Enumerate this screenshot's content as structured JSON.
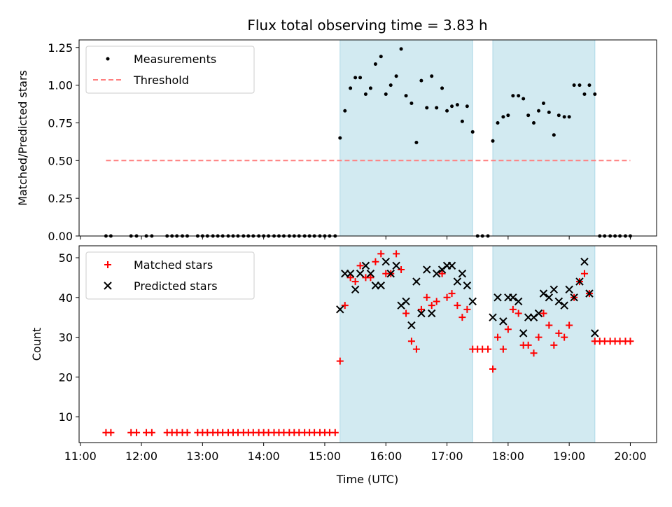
{
  "title": "Flux total observing time = 3.83 h",
  "xlabel": "Time (UTC)",
  "xticks": [
    {
      "v": 11,
      "label": "11:00"
    },
    {
      "v": 12,
      "label": "12:00"
    },
    {
      "v": 13,
      "label": "13:00"
    },
    {
      "v": 14,
      "label": "14:00"
    },
    {
      "v": 15,
      "label": "15:00"
    },
    {
      "v": 16,
      "label": "16:00"
    },
    {
      "v": 17,
      "label": "17:00"
    },
    {
      "v": 18,
      "label": "18:00"
    },
    {
      "v": 19,
      "label": "19:00"
    },
    {
      "v": 20,
      "label": "20:00"
    }
  ],
  "colors": {
    "measure": "#000000",
    "threshold": "#ff7f7f",
    "matched": "#ff0000",
    "predicted": "#000000",
    "shade": "#add8e6"
  },
  "chart_data": [
    {
      "type": "scatter",
      "ylabel": "Matched/Predicted stars",
      "xlim": [
        10.98,
        20.43
      ],
      "ylim": [
        0,
        1.3
      ],
      "yticks": [
        {
          "v": 0,
          "label": "0.00"
        },
        {
          "v": 0.25,
          "label": "0.25"
        },
        {
          "v": 0.5,
          "label": "0.50"
        },
        {
          "v": 0.75,
          "label": "0.75"
        },
        {
          "v": 1.0,
          "label": "1.00"
        },
        {
          "v": 1.25,
          "label": "1.25"
        }
      ],
      "shaded_intervals": [
        [
          15.25,
          17.42
        ],
        [
          17.75,
          19.42
        ]
      ],
      "legend": {
        "position": "top-left",
        "entries": [
          "Measurements",
          "Threshold"
        ]
      },
      "series": [
        {
          "name": "Measurements",
          "marker": "dot",
          "points": [
            [
              11.42,
              0
            ],
            [
              11.5,
              0
            ],
            [
              11.83,
              0
            ],
            [
              11.92,
              0
            ],
            [
              12.08,
              0
            ],
            [
              12.17,
              0
            ],
            [
              12.42,
              0
            ],
            [
              12.5,
              0
            ],
            [
              12.58,
              0
            ],
            [
              12.67,
              0
            ],
            [
              12.75,
              0
            ],
            [
              12.92,
              0
            ],
            [
              13.0,
              0
            ],
            [
              13.08,
              0
            ],
            [
              13.17,
              0
            ],
            [
              13.25,
              0
            ],
            [
              13.33,
              0
            ],
            [
              13.42,
              0
            ],
            [
              13.5,
              0
            ],
            [
              13.58,
              0
            ],
            [
              13.67,
              0
            ],
            [
              13.75,
              0
            ],
            [
              13.83,
              0
            ],
            [
              13.92,
              0
            ],
            [
              14.0,
              0
            ],
            [
              14.08,
              0
            ],
            [
              14.17,
              0
            ],
            [
              14.25,
              0
            ],
            [
              14.33,
              0
            ],
            [
              14.42,
              0
            ],
            [
              14.5,
              0
            ],
            [
              14.58,
              0
            ],
            [
              14.67,
              0
            ],
            [
              14.75,
              0
            ],
            [
              14.83,
              0
            ],
            [
              14.92,
              0
            ],
            [
              15.0,
              0
            ],
            [
              15.08,
              0
            ],
            [
              15.17,
              0
            ],
            [
              15.25,
              0.65
            ],
            [
              15.33,
              0.83
            ],
            [
              15.42,
              0.98
            ],
            [
              15.5,
              1.05
            ],
            [
              15.58,
              1.05
            ],
            [
              15.67,
              0.94
            ],
            [
              15.75,
              0.98
            ],
            [
              15.83,
              1.14
            ],
            [
              15.92,
              1.19
            ],
            [
              16.0,
              0.94
            ],
            [
              16.08,
              1.0
            ],
            [
              16.17,
              1.06
            ],
            [
              16.25,
              1.24
            ],
            [
              16.33,
              0.93
            ],
            [
              16.42,
              0.88
            ],
            [
              16.5,
              0.62
            ],
            [
              16.58,
              1.03
            ],
            [
              16.67,
              0.85
            ],
            [
              16.75,
              1.06
            ],
            [
              16.83,
              0.85
            ],
            [
              16.92,
              0.98
            ],
            [
              17.0,
              0.83
            ],
            [
              17.08,
              0.86
            ],
            [
              17.17,
              0.87
            ],
            [
              17.25,
              0.76
            ],
            [
              17.33,
              0.86
            ],
            [
              17.42,
              0.69
            ],
            [
              17.5,
              0
            ],
            [
              17.58,
              0
            ],
            [
              17.67,
              0
            ],
            [
              17.75,
              0.63
            ],
            [
              17.83,
              0.75
            ],
            [
              17.92,
              0.79
            ],
            [
              18.0,
              0.8
            ],
            [
              18.08,
              0.93
            ],
            [
              18.17,
              0.93
            ],
            [
              18.25,
              0.91
            ],
            [
              18.33,
              0.8
            ],
            [
              18.42,
              0.75
            ],
            [
              18.5,
              0.83
            ],
            [
              18.58,
              0.88
            ],
            [
              18.67,
              0.82
            ],
            [
              18.75,
              0.67
            ],
            [
              18.83,
              0.8
            ],
            [
              18.92,
              0.79
            ],
            [
              19.0,
              0.79
            ],
            [
              19.08,
              1.0
            ],
            [
              19.17,
              1.0
            ],
            [
              19.25,
              0.94
            ],
            [
              19.33,
              1.0
            ],
            [
              19.42,
              0.94
            ],
            [
              19.5,
              0
            ],
            [
              19.58,
              0
            ],
            [
              19.67,
              0
            ],
            [
              19.75,
              0
            ],
            [
              19.83,
              0
            ],
            [
              19.92,
              0
            ],
            [
              20.0,
              0
            ]
          ]
        },
        {
          "name": "Threshold",
          "style": "dashed",
          "points": [
            [
              11.42,
              0.5
            ],
            [
              20.0,
              0.5
            ]
          ]
        }
      ]
    },
    {
      "type": "scatter",
      "ylabel": "Count",
      "xlim": [
        10.98,
        20.43
      ],
      "ylim": [
        3.5,
        53
      ],
      "yticks": [
        {
          "v": 10,
          "label": "10"
        },
        {
          "v": 20,
          "label": "20"
        },
        {
          "v": 30,
          "label": "30"
        },
        {
          "v": 40,
          "label": "40"
        },
        {
          "v": 50,
          "label": "50"
        }
      ],
      "shaded_intervals": [
        [
          15.25,
          17.42
        ],
        [
          17.75,
          19.42
        ]
      ],
      "legend": {
        "position": "top-left",
        "entries": [
          "Matched stars",
          "Predicted stars"
        ]
      },
      "series": [
        {
          "name": "Matched stars",
          "marker": "plus",
          "points": [
            [
              11.42,
              6
            ],
            [
              11.5,
              6
            ],
            [
              11.83,
              6
            ],
            [
              11.92,
              6
            ],
            [
              12.08,
              6
            ],
            [
              12.17,
              6
            ],
            [
              12.42,
              6
            ],
            [
              12.5,
              6
            ],
            [
              12.58,
              6
            ],
            [
              12.67,
              6
            ],
            [
              12.75,
              6
            ],
            [
              12.92,
              6
            ],
            [
              13.0,
              6
            ],
            [
              13.08,
              6
            ],
            [
              13.17,
              6
            ],
            [
              13.25,
              6
            ],
            [
              13.33,
              6
            ],
            [
              13.42,
              6
            ],
            [
              13.5,
              6
            ],
            [
              13.58,
              6
            ],
            [
              13.67,
              6
            ],
            [
              13.75,
              6
            ],
            [
              13.83,
              6
            ],
            [
              13.92,
              6
            ],
            [
              14.0,
              6
            ],
            [
              14.08,
              6
            ],
            [
              14.17,
              6
            ],
            [
              14.25,
              6
            ],
            [
              14.33,
              6
            ],
            [
              14.42,
              6
            ],
            [
              14.5,
              6
            ],
            [
              14.58,
              6
            ],
            [
              14.67,
              6
            ],
            [
              14.75,
              6
            ],
            [
              14.83,
              6
            ],
            [
              14.92,
              6
            ],
            [
              15.0,
              6
            ],
            [
              15.08,
              6
            ],
            [
              15.17,
              6
            ],
            [
              15.25,
              24
            ],
            [
              15.33,
              38
            ],
            [
              15.42,
              45
            ],
            [
              15.5,
              44
            ],
            [
              15.58,
              48
            ],
            [
              15.67,
              45
            ],
            [
              15.75,
              45
            ],
            [
              15.83,
              49
            ],
            [
              15.92,
              51
            ],
            [
              16.0,
              46
            ],
            [
              16.08,
              46
            ],
            [
              16.17,
              51
            ],
            [
              16.25,
              47
            ],
            [
              16.33,
              36
            ],
            [
              16.42,
              29
            ],
            [
              16.5,
              27
            ],
            [
              16.58,
              37
            ],
            [
              16.67,
              40
            ],
            [
              16.75,
              38
            ],
            [
              16.83,
              39
            ],
            [
              16.92,
              46
            ],
            [
              17.0,
              40
            ],
            [
              17.08,
              41
            ],
            [
              17.17,
              38
            ],
            [
              17.25,
              35
            ],
            [
              17.33,
              37
            ],
            [
              17.42,
              27
            ],
            [
              17.5,
              27
            ],
            [
              17.58,
              27
            ],
            [
              17.67,
              27
            ],
            [
              17.75,
              22
            ],
            [
              17.83,
              30
            ],
            [
              17.92,
              27
            ],
            [
              18.0,
              32
            ],
            [
              18.08,
              37
            ],
            [
              18.17,
              36
            ],
            [
              18.25,
              28
            ],
            [
              18.33,
              28
            ],
            [
              18.42,
              26
            ],
            [
              18.5,
              30
            ],
            [
              18.58,
              36
            ],
            [
              18.67,
              33
            ],
            [
              18.75,
              28
            ],
            [
              18.83,
              31
            ],
            [
              18.92,
              30
            ],
            [
              19.0,
              33
            ],
            [
              19.08,
              40
            ],
            [
              19.17,
              44
            ],
            [
              19.25,
              46
            ],
            [
              19.33,
              41
            ],
            [
              19.42,
              29
            ],
            [
              19.5,
              29
            ],
            [
              19.58,
              29
            ],
            [
              19.67,
              29
            ],
            [
              19.75,
              29
            ],
            [
              19.83,
              29
            ],
            [
              19.92,
              29
            ],
            [
              20.0,
              29
            ]
          ]
        },
        {
          "name": "Predicted stars",
          "marker": "x",
          "points": [
            [
              15.25,
              37
            ],
            [
              15.33,
              46
            ],
            [
              15.42,
              46
            ],
            [
              15.5,
              42
            ],
            [
              15.58,
              46
            ],
            [
              15.67,
              48
            ],
            [
              15.75,
              46
            ],
            [
              15.83,
              43
            ],
            [
              15.92,
              43
            ],
            [
              16.0,
              49
            ],
            [
              16.08,
              46
            ],
            [
              16.17,
              48
            ],
            [
              16.25,
              38
            ],
            [
              16.33,
              39
            ],
            [
              16.42,
              33
            ],
            [
              16.5,
              44
            ],
            [
              16.58,
              36
            ],
            [
              16.67,
              47
            ],
            [
              16.75,
              36
            ],
            [
              16.83,
              46
            ],
            [
              16.92,
              47
            ],
            [
              17.0,
              48
            ],
            [
              17.08,
              48
            ],
            [
              17.17,
              44
            ],
            [
              17.25,
              46
            ],
            [
              17.33,
              43
            ],
            [
              17.42,
              39
            ],
            [
              17.75,
              35
            ],
            [
              17.83,
              40
            ],
            [
              17.92,
              34
            ],
            [
              18.0,
              40
            ],
            [
              18.08,
              40
            ],
            [
              18.17,
              39
            ],
            [
              18.25,
              31
            ],
            [
              18.33,
              35
            ],
            [
              18.42,
              35
            ],
            [
              18.5,
              36
            ],
            [
              18.58,
              41
            ],
            [
              18.67,
              40
            ],
            [
              18.75,
              42
            ],
            [
              18.83,
              39
            ],
            [
              18.92,
              38
            ],
            [
              19.0,
              42
            ],
            [
              19.08,
              40
            ],
            [
              19.17,
              44
            ],
            [
              19.25,
              49
            ],
            [
              19.33,
              41
            ],
            [
              19.42,
              31
            ]
          ]
        }
      ]
    }
  ]
}
